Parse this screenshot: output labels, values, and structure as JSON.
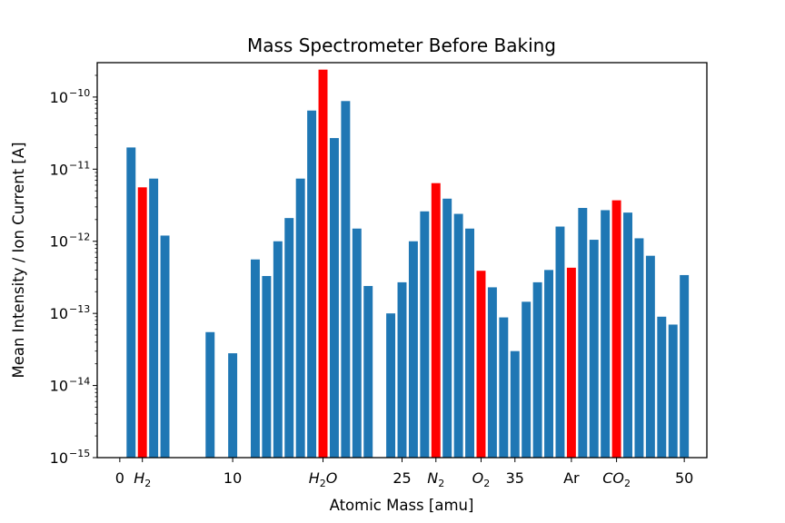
{
  "chart_data": {
    "type": "bar",
    "title": "Mass Spectrometer Before Baking",
    "xlabel": "Atomic Mass [amu]",
    "ylabel": "Mean Intensity / Ion Current [A]",
    "yscale": "log",
    "ylim": [
      1e-15,
      3e-10
    ],
    "xlim": [
      -2,
      52
    ],
    "grid": false,
    "x_ticks": [
      {
        "value": 0,
        "label": "0"
      },
      {
        "value": 2,
        "label": "H",
        "sub": "2"
      },
      {
        "value": 10,
        "label": "10"
      },
      {
        "value": 18,
        "label": "H",
        "sub": "2",
        "suffix": "O"
      },
      {
        "value": 25,
        "label": "25"
      },
      {
        "value": 28,
        "label": "N",
        "sub": "2"
      },
      {
        "value": 32,
        "label": "O",
        "sub": "2"
      },
      {
        "value": 35,
        "label": "35"
      },
      {
        "value": 40,
        "label": "Ar"
      },
      {
        "value": 44,
        "label": "CO",
        "sub": "2"
      },
      {
        "value": 50,
        "label": "50"
      }
    ],
    "y_ticks": [
      {
        "value": 1e-15,
        "base": "10",
        "exp": "−15"
      },
      {
        "value": 1e-14,
        "base": "10",
        "exp": "−14"
      },
      {
        "value": 1e-13,
        "base": "10",
        "exp": "−13"
      },
      {
        "value": 1e-12,
        "base": "10",
        "exp": "−12"
      },
      {
        "value": 1e-11,
        "base": "10",
        "exp": "−11"
      },
      {
        "value": 1e-10,
        "base": "10",
        "exp": "−10"
      }
    ],
    "colors": {
      "default": "#1f77b4",
      "highlight": "#ff0000"
    },
    "bars": [
      {
        "x": 1,
        "value": 2e-11,
        "highlight": false
      },
      {
        "x": 2,
        "value": 5.6e-12,
        "highlight": true
      },
      {
        "x": 3,
        "value": 7.4e-12,
        "highlight": false
      },
      {
        "x": 4,
        "value": 1.2e-12,
        "highlight": false
      },
      {
        "x": 8,
        "value": 5.5e-14,
        "highlight": false
      },
      {
        "x": 10,
        "value": 2.8e-14,
        "highlight": false
      },
      {
        "x": 12,
        "value": 5.6e-13,
        "highlight": false
      },
      {
        "x": 13,
        "value": 3.3e-13,
        "highlight": false
      },
      {
        "x": 14,
        "value": 1e-12,
        "highlight": false
      },
      {
        "x": 15,
        "value": 2.1e-12,
        "highlight": false
      },
      {
        "x": 16,
        "value": 7.4e-12,
        "highlight": false
      },
      {
        "x": 17,
        "value": 6.5e-11,
        "highlight": false
      },
      {
        "x": 18,
        "value": 2.4e-10,
        "highlight": true
      },
      {
        "x": 19,
        "value": 2.7e-11,
        "highlight": false
      },
      {
        "x": 20,
        "value": 8.8e-11,
        "highlight": false
      },
      {
        "x": 21,
        "value": 1.5e-12,
        "highlight": false
      },
      {
        "x": 22,
        "value": 2.4e-13,
        "highlight": false
      },
      {
        "x": 24,
        "value": 1e-13,
        "highlight": false
      },
      {
        "x": 25,
        "value": 2.7e-13,
        "highlight": false
      },
      {
        "x": 26,
        "value": 1e-12,
        "highlight": false
      },
      {
        "x": 27,
        "value": 2.6e-12,
        "highlight": false
      },
      {
        "x": 28,
        "value": 6.4e-12,
        "highlight": true
      },
      {
        "x": 29,
        "value": 3.9e-12,
        "highlight": false
      },
      {
        "x": 30,
        "value": 2.4e-12,
        "highlight": false
      },
      {
        "x": 31,
        "value": 1.5e-12,
        "highlight": false
      },
      {
        "x": 32,
        "value": 3.9e-13,
        "highlight": true
      },
      {
        "x": 33,
        "value": 2.3e-13,
        "highlight": false
      },
      {
        "x": 34,
        "value": 8.8e-14,
        "highlight": false
      },
      {
        "x": 35,
        "value": 3e-14,
        "highlight": false
      },
      {
        "x": 36,
        "value": 1.45e-13,
        "highlight": false
      },
      {
        "x": 37,
        "value": 2.7e-13,
        "highlight": false
      },
      {
        "x": 38,
        "value": 4e-13,
        "highlight": false
      },
      {
        "x": 39,
        "value": 1.6e-12,
        "highlight": false
      },
      {
        "x": 40,
        "value": 4.3e-13,
        "highlight": true
      },
      {
        "x": 41,
        "value": 2.9e-12,
        "highlight": false
      },
      {
        "x": 42,
        "value": 1.05e-12,
        "highlight": false
      },
      {
        "x": 43,
        "value": 2.7e-12,
        "highlight": false
      },
      {
        "x": 44,
        "value": 3.7e-12,
        "highlight": true
      },
      {
        "x": 45,
        "value": 2.5e-12,
        "highlight": false
      },
      {
        "x": 46,
        "value": 1.1e-12,
        "highlight": false
      },
      {
        "x": 47,
        "value": 6.3e-13,
        "highlight": false
      },
      {
        "x": 48,
        "value": 9e-14,
        "highlight": false
      },
      {
        "x": 49,
        "value": 7e-14,
        "highlight": false
      },
      {
        "x": 50,
        "value": 3.4e-13,
        "highlight": false
      }
    ]
  }
}
